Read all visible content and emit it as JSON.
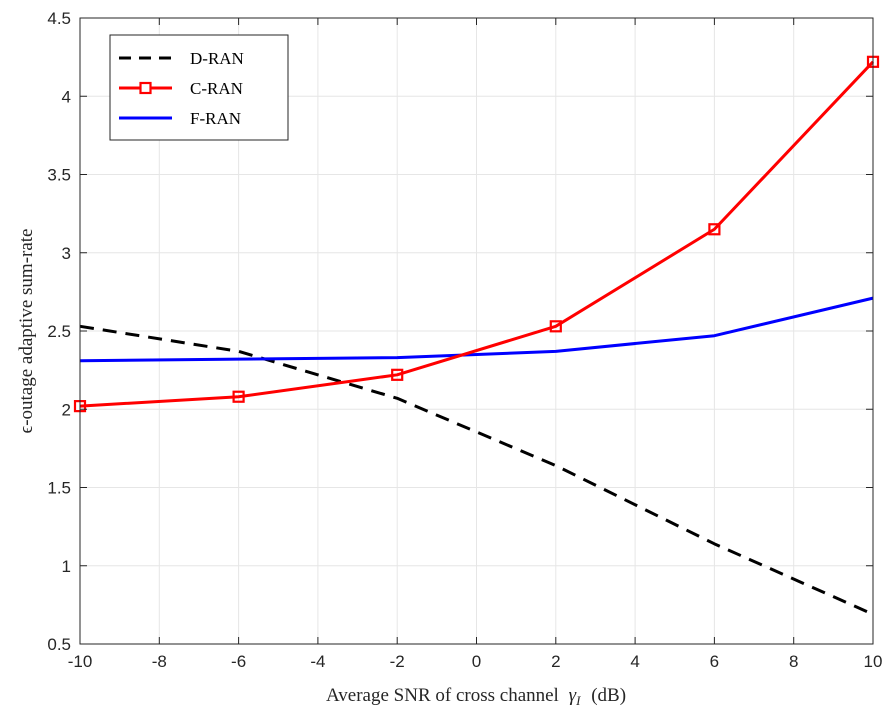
{
  "chart_data": {
    "type": "line",
    "xlabel": "Average SNR of cross channel",
    "xlabel_symbol": "γ",
    "xlabel_subscript": "I",
    "xlabel_unit": "(dB)",
    "ylabel": "ϵ-outage adaptive sum-rate",
    "xlim": [
      -10,
      10
    ],
    "ylim": [
      0.5,
      4.5
    ],
    "xticks": [
      -10,
      -8,
      -6,
      -4,
      -2,
      0,
      2,
      4,
      6,
      8,
      10
    ],
    "yticks": [
      0.5,
      1,
      1.5,
      2,
      2.5,
      3,
      3.5,
      4,
      4.5
    ],
    "xtick_labels": [
      "-10",
      "-8",
      "-6",
      "-4",
      "-2",
      "0",
      "2",
      "4",
      "6",
      "8",
      "10"
    ],
    "ytick_labels": [
      "0.5",
      "1",
      "1.5",
      "2",
      "2.5",
      "3",
      "3.5",
      "4",
      "4.5"
    ],
    "grid": true,
    "legend_position": "top-left",
    "series": [
      {
        "name": "D-RAN",
        "color": "#000000",
        "line_style": "dashed",
        "marker": "none",
        "x": [
          -10,
          -6,
          -2,
          2,
          6,
          10
        ],
        "y": [
          2.53,
          2.37,
          2.07,
          1.64,
          1.14,
          0.69
        ]
      },
      {
        "name": "C-RAN",
        "color": "#ff0000",
        "line_style": "solid",
        "marker": "square",
        "x": [
          -10,
          -6,
          -2,
          2,
          6,
          10
        ],
        "y": [
          2.02,
          2.08,
          2.22,
          2.53,
          3.15,
          4.22
        ]
      },
      {
        "name": "F-RAN",
        "color": "#0000ff",
        "line_style": "solid",
        "marker": "none",
        "x": [
          -10,
          -6,
          -2,
          2,
          6,
          10
        ],
        "y": [
          2.31,
          2.32,
          2.33,
          2.37,
          2.47,
          2.71
        ]
      }
    ]
  }
}
